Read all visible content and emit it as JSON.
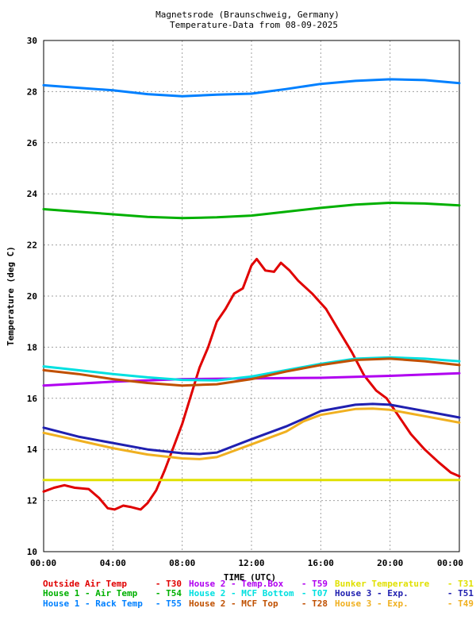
{
  "chart_data": {
    "type": "line",
    "title": "Magnetsrode (Braunschweig, Germany)",
    "subtitle": "Temperature-Data from 08-09-2025",
    "xlabel": "TIME (UTC)",
    "ylabel": "Temperature (deg C)",
    "xlim": [
      0,
      24
    ],
    "ylim": [
      10,
      30
    ],
    "grid": true,
    "x_ticks": [
      "00:00",
      "04:00",
      "08:00",
      "12:00",
      "16:00",
      "20:00",
      "00:00"
    ],
    "y_ticks": [
      "10",
      "12",
      "14",
      "16",
      "18",
      "20",
      "22",
      "24",
      "26",
      "28",
      "30"
    ],
    "series": [
      {
        "name": "Outside Air Temp",
        "code": "T30",
        "color": "#e00000",
        "points": [
          [
            0,
            12.35
          ],
          [
            0.6,
            12.5
          ],
          [
            1.2,
            12.6
          ],
          [
            1.8,
            12.5
          ],
          [
            2.6,
            12.45
          ],
          [
            3.2,
            12.1
          ],
          [
            3.7,
            11.7
          ],
          [
            4.1,
            11.65
          ],
          [
            4.6,
            11.8
          ],
          [
            5.0,
            11.75
          ],
          [
            5.6,
            11.65
          ],
          [
            6.0,
            11.9
          ],
          [
            6.5,
            12.4
          ],
          [
            7.0,
            13.2
          ],
          [
            7.5,
            14.1
          ],
          [
            8.0,
            15.0
          ],
          [
            8.5,
            16.1
          ],
          [
            9.0,
            17.2
          ],
          [
            9.5,
            18.0
          ],
          [
            10.0,
            19.0
          ],
          [
            10.5,
            19.5
          ],
          [
            11.0,
            20.1
          ],
          [
            11.5,
            20.3
          ],
          [
            12.0,
            21.2
          ],
          [
            12.3,
            21.45
          ],
          [
            12.8,
            21.0
          ],
          [
            13.3,
            20.95
          ],
          [
            13.7,
            21.3
          ],
          [
            14.2,
            21.0
          ],
          [
            14.7,
            20.6
          ],
          [
            15.5,
            20.1
          ],
          [
            16.3,
            19.5
          ],
          [
            17.0,
            18.7
          ],
          [
            17.8,
            17.8
          ],
          [
            18.5,
            16.9
          ],
          [
            19.2,
            16.3
          ],
          [
            19.8,
            16.0
          ],
          [
            20.5,
            15.3
          ],
          [
            21.2,
            14.6
          ],
          [
            22.0,
            14.0
          ],
          [
            22.8,
            13.5
          ],
          [
            23.5,
            13.1
          ],
          [
            24.0,
            12.95
          ]
        ]
      },
      {
        "name": "House 1 - Air  Temp",
        "code": "T54",
        "color": "#00b000",
        "points": [
          [
            0,
            23.4
          ],
          [
            2,
            23.3
          ],
          [
            4,
            23.2
          ],
          [
            6,
            23.1
          ],
          [
            8,
            23.05
          ],
          [
            10,
            23.08
          ],
          [
            12,
            23.15
          ],
          [
            14,
            23.3
          ],
          [
            16,
            23.45
          ],
          [
            18,
            23.58
          ],
          [
            20,
            23.65
          ],
          [
            22,
            23.62
          ],
          [
            24,
            23.55
          ]
        ]
      },
      {
        "name": "House 1 - Rack Temp",
        "code": "T55",
        "color": "#0080ff",
        "points": [
          [
            0,
            28.25
          ],
          [
            2,
            28.15
          ],
          [
            4,
            28.05
          ],
          [
            6,
            27.9
          ],
          [
            8,
            27.82
          ],
          [
            10,
            27.88
          ],
          [
            12,
            27.92
          ],
          [
            14,
            28.1
          ],
          [
            16,
            28.3
          ],
          [
            18,
            28.42
          ],
          [
            20,
            28.48
          ],
          [
            22,
            28.45
          ],
          [
            24,
            28.33
          ]
        ]
      },
      {
        "name": "House 2 - Temp.Box",
        "code": "T59",
        "color": "#b000f0",
        "points": [
          [
            0,
            16.5
          ],
          [
            4,
            16.65
          ],
          [
            8,
            16.75
          ],
          [
            12,
            16.78
          ],
          [
            16,
            16.8
          ],
          [
            20,
            16.88
          ],
          [
            24,
            16.98
          ]
        ]
      },
      {
        "name": "House 2 - MCF Bottom",
        "code": "T07",
        "color": "#00e0e0",
        "points": [
          [
            0,
            17.25
          ],
          [
            2,
            17.1
          ],
          [
            4,
            16.95
          ],
          [
            6,
            16.82
          ],
          [
            8,
            16.72
          ],
          [
            10,
            16.7
          ],
          [
            12,
            16.85
          ],
          [
            14,
            17.1
          ],
          [
            16,
            17.35
          ],
          [
            18,
            17.55
          ],
          [
            20,
            17.6
          ],
          [
            22,
            17.55
          ],
          [
            24,
            17.45
          ]
        ]
      },
      {
        "name": "House 2 - MCF Top",
        "code": "T28",
        "color": "#c05000",
        "points": [
          [
            0,
            17.1
          ],
          [
            2,
            16.95
          ],
          [
            4,
            16.75
          ],
          [
            6,
            16.6
          ],
          [
            8,
            16.5
          ],
          [
            10,
            16.55
          ],
          [
            12,
            16.75
          ],
          [
            14,
            17.05
          ],
          [
            16,
            17.3
          ],
          [
            18,
            17.5
          ],
          [
            20,
            17.55
          ],
          [
            22,
            17.45
          ],
          [
            24,
            17.3
          ]
        ]
      },
      {
        "name": "Bunker Temperature",
        "code": "T31",
        "color": "#e0e000",
        "points": [
          [
            0,
            12.8
          ],
          [
            24,
            12.8
          ]
        ]
      },
      {
        "name": "House 3 - Exp.",
        "code": "T51",
        "color": "#2020b0",
        "points": [
          [
            0,
            14.85
          ],
          [
            2,
            14.5
          ],
          [
            4,
            14.25
          ],
          [
            6,
            14.0
          ],
          [
            8,
            13.85
          ],
          [
            9,
            13.82
          ],
          [
            10,
            13.88
          ],
          [
            12,
            14.4
          ],
          [
            14,
            14.9
          ],
          [
            15,
            15.2
          ],
          [
            16,
            15.5
          ],
          [
            18,
            15.75
          ],
          [
            19,
            15.78
          ],
          [
            20,
            15.75
          ],
          [
            22,
            15.5
          ],
          [
            24,
            15.25
          ]
        ]
      },
      {
        "name": "House 3 - Exp.",
        "code": "T49",
        "color": "#f0b020",
        "points": [
          [
            0,
            14.65
          ],
          [
            2,
            14.35
          ],
          [
            4,
            14.05
          ],
          [
            6,
            13.8
          ],
          [
            8,
            13.65
          ],
          [
            9,
            13.62
          ],
          [
            10,
            13.7
          ],
          [
            12,
            14.2
          ],
          [
            14,
            14.7
          ],
          [
            15,
            15.1
          ],
          [
            16,
            15.35
          ],
          [
            18,
            15.58
          ],
          [
            19,
            15.6
          ],
          [
            20,
            15.55
          ],
          [
            22,
            15.3
          ],
          [
            24,
            15.05
          ]
        ]
      }
    ]
  }
}
